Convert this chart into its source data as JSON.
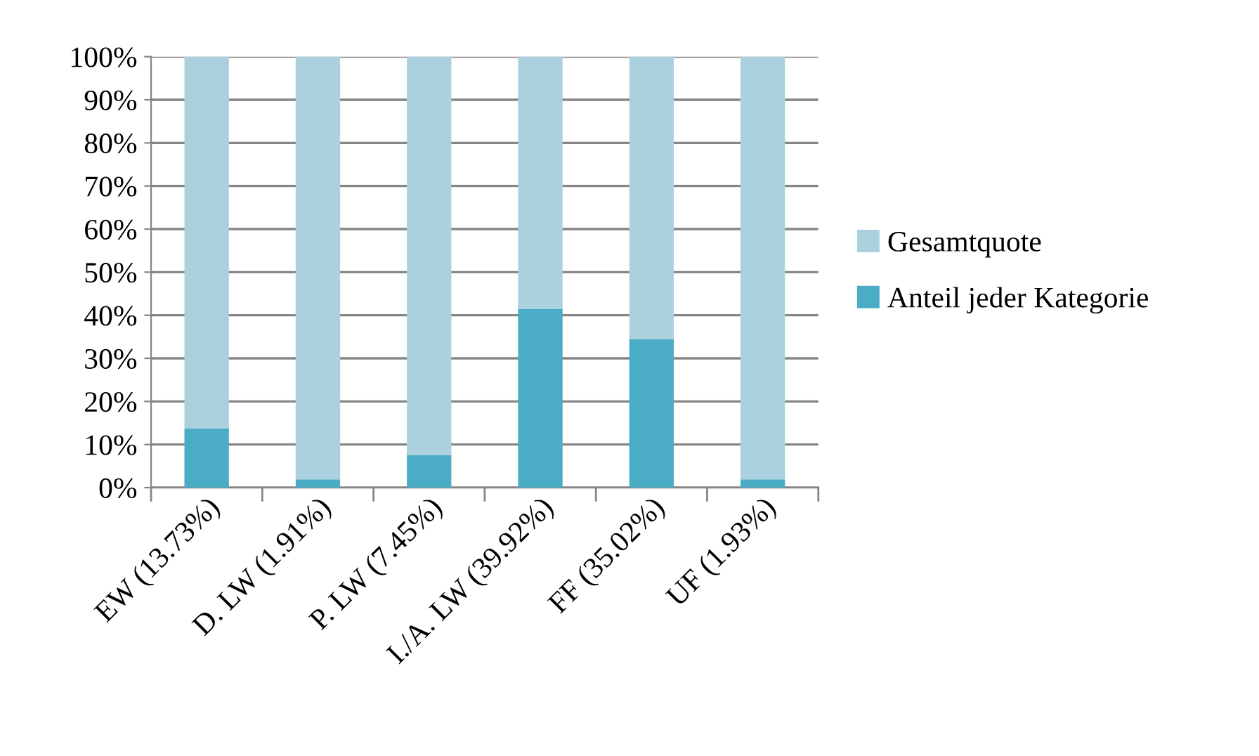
{
  "chart_data": {
    "type": "bar",
    "stacked": true,
    "categories": [
      "EW (13.73%)",
      "D. LW (1.91%)",
      "P. LW (7.45%)",
      "I./A. LW (39.92%)",
      "FF (35.02%)",
      "UF (1.93%)"
    ],
    "series": [
      {
        "name": "Anteil jeder Kategorie",
        "color": "#4bacc6",
        "values": [
          13.7,
          1.9,
          7.5,
          41.5,
          34.4,
          1.9
        ]
      },
      {
        "name": "Gesamtquote",
        "color": "#abd0de",
        "values": [
          86.3,
          98.1,
          92.5,
          58.5,
          65.6,
          98.1
        ]
      }
    ],
    "ylim": [
      0,
      100
    ],
    "yticks": [
      {
        "value": 0,
        "label": "0%"
      },
      {
        "value": 10,
        "label": "10%"
      },
      {
        "value": 20,
        "label": "20%"
      },
      {
        "value": 30,
        "label": "30%"
      },
      {
        "value": 40,
        "label": "40%"
      },
      {
        "value": 50,
        "label": "50%"
      },
      {
        "value": 60,
        "label": "60%"
      },
      {
        "value": 70,
        "label": "70%"
      },
      {
        "value": 80,
        "label": "80%"
      },
      {
        "value": 90,
        "label": "90%"
      },
      {
        "value": 100,
        "label": "100%"
      }
    ],
    "grid": "y",
    "legend": "right"
  }
}
